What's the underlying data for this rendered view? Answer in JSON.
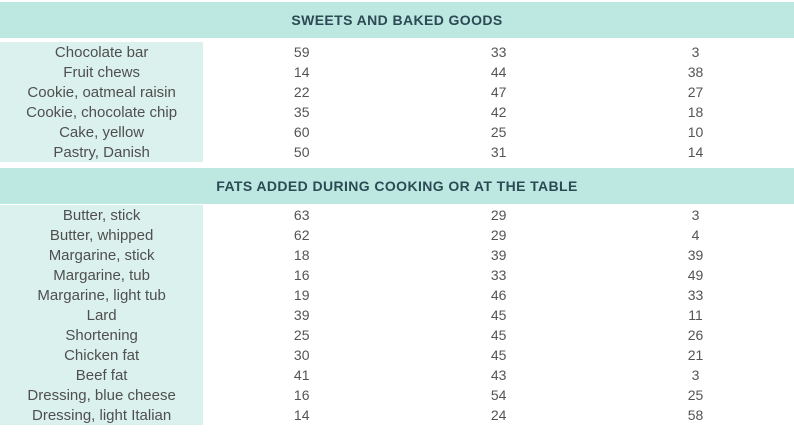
{
  "chart_data": {
    "type": "table",
    "value_column_count": 3,
    "sections": [
      {
        "header": "SWEETS AND BAKED GOODS",
        "rows": [
          {
            "name": "Chocolate bar",
            "values": [
              59,
              33,
              3
            ]
          },
          {
            "name": "Fruit chews",
            "values": [
              14,
              44,
              38
            ]
          },
          {
            "name": "Cookie, oatmeal raisin",
            "values": [
              22,
              47,
              27
            ]
          },
          {
            "name": "Cookie, chocolate chip",
            "values": [
              35,
              42,
              18
            ]
          },
          {
            "name": "Cake, yellow",
            "values": [
              60,
              25,
              10
            ]
          },
          {
            "name": "Pastry, Danish",
            "values": [
              50,
              31,
              14
            ]
          }
        ]
      },
      {
        "header": "FATS ADDED DURING COOKING OR AT THE TABLE",
        "rows": [
          {
            "name": "Butter, stick",
            "values": [
              63,
              29,
              3
            ]
          },
          {
            "name": "Butter, whipped",
            "values": [
              62,
              29,
              4
            ]
          },
          {
            "name": "Margarine, stick",
            "values": [
              18,
              39,
              39
            ]
          },
          {
            "name": "Margarine, tub",
            "values": [
              16,
              33,
              49
            ]
          },
          {
            "name": "Margarine, light tub",
            "values": [
              19,
              46,
              33
            ]
          },
          {
            "name": "Lard",
            "values": [
              39,
              45,
              11
            ]
          },
          {
            "name": "Shortening",
            "values": [
              25,
              45,
              26
            ]
          },
          {
            "name": "Chicken fat",
            "values": [
              30,
              45,
              21
            ]
          },
          {
            "name": "Beef fat",
            "values": [
              41,
              43,
              3
            ]
          },
          {
            "name": "Dressing, blue cheese",
            "values": [
              16,
              54,
              25
            ]
          },
          {
            "name": "Dressing, light Italian",
            "values": [
              14,
              24,
              58
            ]
          }
        ]
      }
    ]
  },
  "colors": {
    "header_band": "#bde7e1",
    "label_column_band": "#dbf1ed",
    "header_text": "#2b4a54",
    "body_text": "#4f4f4f",
    "background": "#ffffff"
  }
}
